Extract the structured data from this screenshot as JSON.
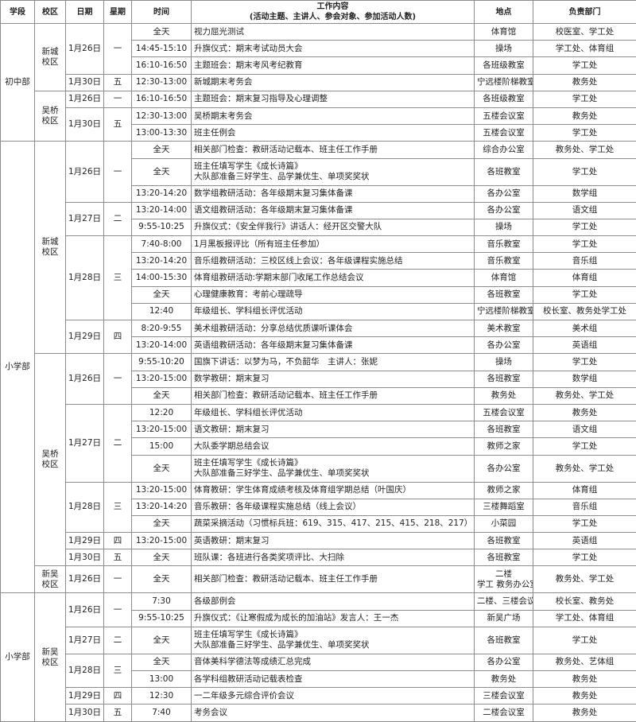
{
  "header": {
    "division": "学段",
    "campus": "校区",
    "date": "日期",
    "weekday": "星期",
    "time": "时间",
    "content": [
      "工作内容",
      "(活动主题、主讲人、参会对象、参加活动人数)"
    ],
    "location": "地点",
    "dept": "负责部门"
  },
  "sections": [
    {
      "division": "初中部",
      "campuses": [
        {
          "campus": [
            "新城",
            "校区"
          ],
          "dates": [
            {
              "date": "1月26日",
              "weekday": "一",
              "items": [
                {
                  "time": "全天",
                  "content": [
                    "视力屈光测试"
                  ],
                  "location": [
                    "体育馆"
                  ],
                  "dept": "校医室、学工处"
                },
                {
                  "time": "14:45-15:10",
                  "content": [
                    "升旗仪式：期末考试动员大会"
                  ],
                  "location": [
                    "操场"
                  ],
                  "dept": "学工处、体育组"
                },
                {
                  "time": "16:10-16:50",
                  "content": [
                    "主题班会：期末考风考纪教育"
                  ],
                  "location": [
                    "各班级教室"
                  ],
                  "dept": "学工处"
                }
              ]
            },
            {
              "date": "1月30日",
              "weekday": "五",
              "items": [
                {
                  "time": "12:30-13:00",
                  "content": [
                    "新城期末考务会"
                  ],
                  "location": [
                    "宁远楼阶梯教室"
                  ],
                  "dept": "教务处"
                }
              ]
            }
          ]
        },
        {
          "campus": [
            "吴桥",
            "校区"
          ],
          "dates": [
            {
              "date": "1月26日",
              "weekday": "一",
              "items": [
                {
                  "time": "16:10-16:50",
                  "content": [
                    "主题班会：期末复习指导及心理调整"
                  ],
                  "location": [
                    "各班级教室"
                  ],
                  "dept": "学工处"
                }
              ]
            },
            {
              "date": "1月30日",
              "weekday": "五",
              "items": [
                {
                  "time": "12:30-13:00",
                  "content": [
                    "吴桥期末考务会"
                  ],
                  "location": [
                    "五楼会议室"
                  ],
                  "dept": "教务处"
                },
                {
                  "time": "13:00-13:30",
                  "content": [
                    "班主任例会"
                  ],
                  "location": [
                    "五楼会议室"
                  ],
                  "dept": "学工处"
                }
              ]
            }
          ]
        }
      ]
    },
    {
      "division": "小学部",
      "campuses": [
        {
          "campus": [
            "新城",
            "校区"
          ],
          "dates": [
            {
              "date": "1月26日",
              "weekday": "一",
              "items": [
                {
                  "time": "全天",
                  "content": [
                    "相关部门检查：教研活动记载本、班主任工作手册"
                  ],
                  "location": [
                    "综合办公室"
                  ],
                  "dept": "教务处、学工处"
                },
                {
                  "time": "全天",
                  "content": [
                    "班主任填写学生《成长诗篇》",
                    "大队部准备三好学生、品学兼优生、单项奖奖状"
                  ],
                  "location": [
                    "各班教室"
                  ],
                  "dept": "学工处"
                },
                {
                  "time": "13:20-14:20",
                  "content": [
                    "数学组教研活动：各年级期末复习集体备课"
                  ],
                  "location": [
                    "各办公室"
                  ],
                  "dept": "数学组"
                }
              ]
            },
            {
              "date": "1月27日",
              "weekday": "二",
              "items": [
                {
                  "time": "13:20-14:00",
                  "content": [
                    "语文组教研活动：各年级期末复习集体备课"
                  ],
                  "location": [
                    "各办公室"
                  ],
                  "dept": "语文组"
                },
                {
                  "time": "9:55-10:25",
                  "content": [
                    "升旗仪式：《安全伴我行》讲话人：经开区交警大队"
                  ],
                  "location": [
                    "操场"
                  ],
                  "dept": "学工处"
                }
              ]
            },
            {
              "date": "1月28日",
              "weekday": "三",
              "items": [
                {
                  "time": "7:40-8:00",
                  "content": [
                    "1月黑板报评比（所有班主任参加）"
                  ],
                  "location": [
                    "音乐教室"
                  ],
                  "dept": "学工处"
                },
                {
                  "time": "13:20-14:20",
                  "content": [
                    "音乐组教研活动：三校区线上会议：各年级课程实施总结"
                  ],
                  "location": [
                    "音乐教室"
                  ],
                  "dept": "音乐组"
                },
                {
                  "time": "14:00-15:30",
                  "content": [
                    "体育组教研活动:学期末部门收尾工作总结会议"
                  ],
                  "location": [
                    "体育馆"
                  ],
                  "dept": "体育组"
                },
                {
                  "time": "全天",
                  "content": [
                    "心理健康教育：考前心理疏导"
                  ],
                  "location": [
                    "各班教室"
                  ],
                  "dept": "学工处"
                },
                {
                  "time": "12:40",
                  "content": [
                    "年级组长、学科组长评优活动"
                  ],
                  "location": [
                    "宁远楼阶梯教室"
                  ],
                  "dept": "校长室、教务处学工处"
                }
              ]
            },
            {
              "date": "1月29日",
              "weekday": "四",
              "items": [
                {
                  "time": "8:20-9:55",
                  "content": [
                    "美术组教研活动：分享总结优质课听课体会"
                  ],
                  "location": [
                    "美术教室"
                  ],
                  "dept": "美术组"
                },
                {
                  "time": "13:20-14:00",
                  "content": [
                    "英语组教研活动：各年级期末复习集体备课"
                  ],
                  "location": [
                    "各办公室"
                  ],
                  "dept": "英语组"
                }
              ]
            }
          ]
        },
        {
          "campus": [
            "吴桥",
            "校区"
          ],
          "dates": [
            {
              "date": "1月26日",
              "weekday": "一",
              "items": [
                {
                  "time": "9:55-10:20",
                  "content": [
                    "国旗下讲话：以梦为马，不负韶华　主讲人：张妮"
                  ],
                  "location": [
                    "操场"
                  ],
                  "dept": "学工处"
                },
                {
                  "time": "13:20-15:00",
                  "content": [
                    "数学教研：期末复习"
                  ],
                  "location": [
                    "各班教室"
                  ],
                  "dept": "数学组"
                },
                {
                  "time": "全天",
                  "content": [
                    "相关部门检查：教研活动记载本、班主任工作手册"
                  ],
                  "location": [
                    "教务处"
                  ],
                  "dept": "教务处、学工处"
                }
              ]
            },
            {
              "date": "1月27日",
              "weekday": "二",
              "items": [
                {
                  "time": "12:20",
                  "content": [
                    "年级组长、学科组长评优活动"
                  ],
                  "location": [
                    "五楼会议室"
                  ],
                  "dept": "教务处"
                },
                {
                  "time": "13:20-15:00",
                  "content": [
                    "语文教研：期末复习"
                  ],
                  "location": [
                    "各班教室"
                  ],
                  "dept": "语文组"
                },
                {
                  "time": "15:00",
                  "content": [
                    "大队委学期总结会议"
                  ],
                  "location": [
                    "教师之家"
                  ],
                  "dept": "学工处"
                },
                {
                  "time": "全天",
                  "content": [
                    "班主任填写学生《成长诗篇》",
                    "大队部准备三好学生、品学兼优生、单项奖奖状"
                  ],
                  "location": [
                    "各办公室"
                  ],
                  "dept": "教务处、学工处"
                }
              ]
            },
            {
              "date": "1月28日",
              "weekday": "三",
              "items": [
                {
                  "time": "13:20-15:00",
                  "content": [
                    "体育教研：学生体育成绩考核及体育组学期总结（叶国庆）"
                  ],
                  "location": [
                    "教师之家"
                  ],
                  "dept": "体育组"
                },
                {
                  "time": "13:20-14:20",
                  "content": [
                    "音乐教研：各年级课程实施总结（线上会议）"
                  ],
                  "location": [
                    "三楼舞蹈室"
                  ],
                  "dept": "音乐组"
                },
                {
                  "time": "全天",
                  "content": [
                    "蔬菜采摘活动（习惯标兵班：619、315、417、215、415、218、217）"
                  ],
                  "location": [
                    "小菜园"
                  ],
                  "dept": "学工处"
                }
              ]
            },
            {
              "date": "1月29日",
              "weekday": "四",
              "items": [
                {
                  "time": "13:20-15:00",
                  "content": [
                    "英语教研：期末复习"
                  ],
                  "location": [
                    "各班教室"
                  ],
                  "dept": "英语组"
                }
              ]
            },
            {
              "date": "1月30日",
              "weekday": "五",
              "items": [
                {
                  "time": "全天",
                  "content": [
                    "班队课：各班进行各类奖项评比、大扫除"
                  ],
                  "location": [
                    "各班教室"
                  ],
                  "dept": "学工处"
                }
              ]
            }
          ]
        },
        {
          "campus": [
            "新吴",
            "校区"
          ],
          "dates": [
            {
              "date": "1月26日",
              "weekday": "一",
              "items": [
                {
                  "time": "全天",
                  "content": [
                    "相关部门检查：教研活动记载本、班主任工作手册"
                  ],
                  "location": [
                    "二楼",
                    "学工 教务办公室"
                  ],
                  "dept": "教务处、学工处"
                }
              ]
            }
          ]
        }
      ]
    },
    {
      "division": "小学部",
      "campuses": [
        {
          "campus": [
            "新吴",
            "校区"
          ],
          "dates": [
            {
              "date": "1月26日",
              "weekday": "一",
              "items": [
                {
                  "time": "7:30",
                  "content": [
                    "各级部例会"
                  ],
                  "location": [
                    "二楼、三楼会议室"
                  ],
                  "dept": "校长室、教务处"
                },
                {
                  "time": "9:55-10:25",
                  "content": [
                    "升旗仪式：《让寒假成为成长的加油站》发言人：王一杰"
                  ],
                  "location": [
                    "新吴广场"
                  ],
                  "dept": "学工处、体育组"
                }
              ]
            },
            {
              "date": "1月27日",
              "weekday": "二",
              "items": [
                {
                  "time": "全天",
                  "content": [
                    "班主任填写学生《成长诗篇》",
                    "大队部准备三好学生、品学兼优生、单项奖奖状"
                  ],
                  "location": [
                    "各班教室"
                  ],
                  "dept": "学工处"
                }
              ]
            },
            {
              "date": "1月28日",
              "weekday": "三",
              "items": [
                {
                  "time": "全天",
                  "content": [
                    "音体美科学德法等成绩汇总完成"
                  ],
                  "location": [
                    "各办公室"
                  ],
                  "dept": "教务处、艺体组"
                },
                {
                  "time": "13:00",
                  "content": [
                    "各学科组教研活动记载表检查"
                  ],
                  "location": [
                    "教务处"
                  ],
                  "dept": "教务处"
                }
              ]
            },
            {
              "date": "1月29日",
              "weekday": "四",
              "items": [
                {
                  "time": "12:30",
                  "content": [
                    "一二年级多元综合评价会议"
                  ],
                  "location": [
                    "三楼会议室"
                  ],
                  "dept": "教务处"
                }
              ]
            },
            {
              "date": "1月30日",
              "weekday": "五",
              "items": [
                {
                  "time": "7:40",
                  "content": [
                    "考务会议"
                  ],
                  "location": [
                    "二楼会议室"
                  ],
                  "dept": "教务处"
                }
              ]
            }
          ]
        }
      ]
    }
  ]
}
